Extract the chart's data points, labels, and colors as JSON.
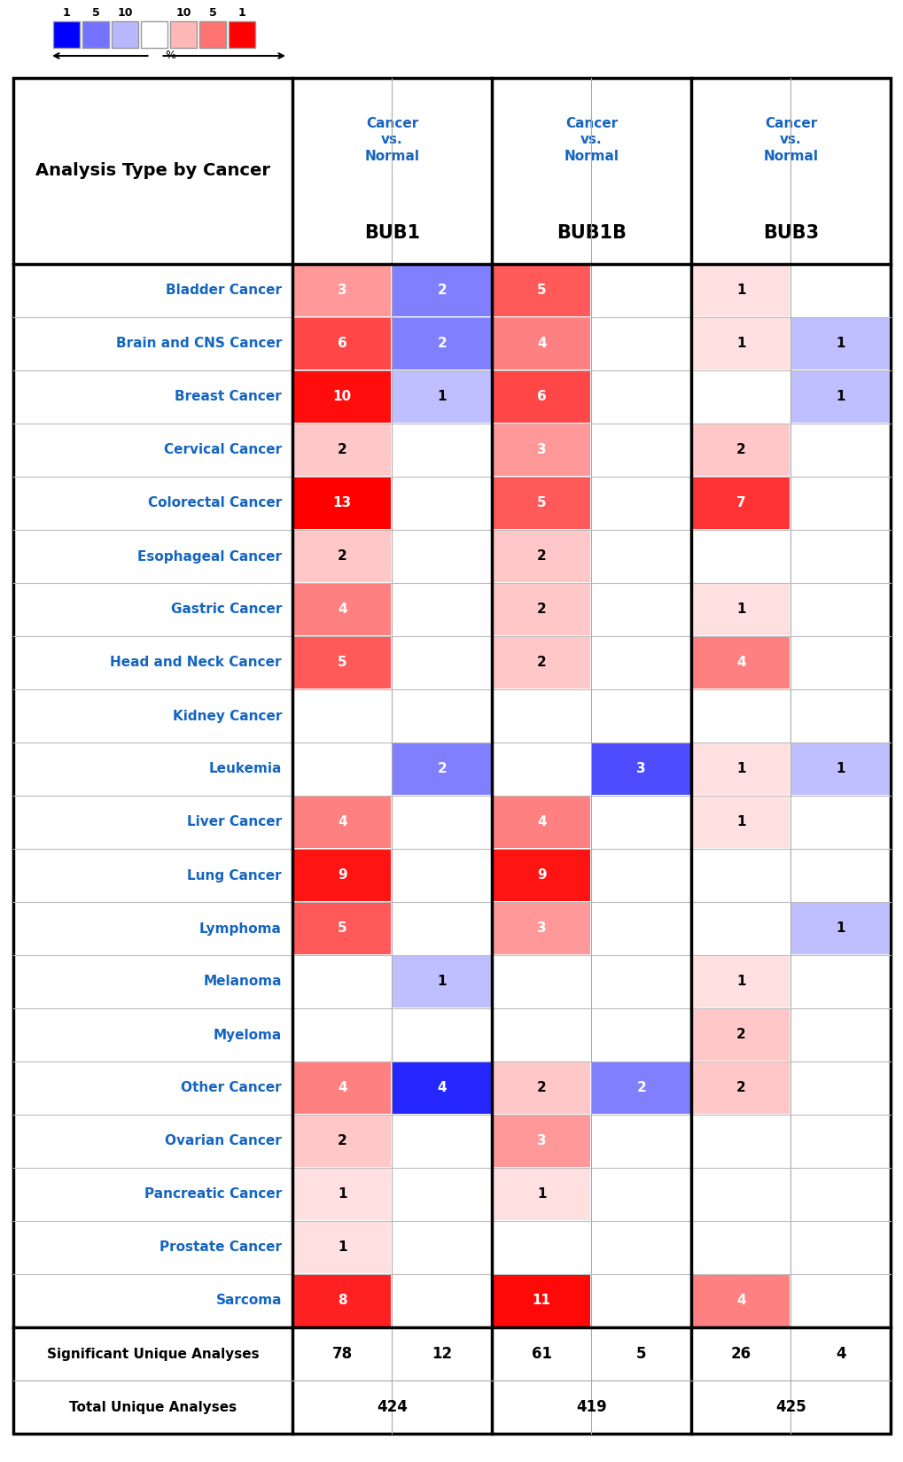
{
  "cancer_types": [
    "Bladder Cancer",
    "Brain and CNS Cancer",
    "Breast Cancer",
    "Cervical Cancer",
    "Colorectal Cancer",
    "Esophageal Cancer",
    "Gastric Cancer",
    "Head and Neck Cancer",
    "Kidney Cancer",
    "Leukemia",
    "Liver Cancer",
    "Lung Cancer",
    "Lymphoma",
    "Melanoma",
    "Myeloma",
    "Other Cancer",
    "Ovarian Cancer",
    "Pancreatic Cancer",
    "Prostate Cancer",
    "Sarcoma"
  ],
  "genes": [
    "BUB1",
    "BUB1B",
    "BUB3"
  ],
  "data": {
    "BUB1": {
      "over": [
        3,
        6,
        10,
        2,
        13,
        2,
        4,
        5,
        0,
        0,
        4,
        9,
        5,
        0,
        0,
        4,
        2,
        1,
        1,
        8
      ],
      "under": [
        2,
        2,
        1,
        0,
        0,
        0,
        0,
        0,
        0,
        2,
        0,
        0,
        0,
        1,
        0,
        4,
        0,
        0,
        0,
        0
      ]
    },
    "BUB1B": {
      "over": [
        5,
        4,
        6,
        3,
        5,
        2,
        2,
        2,
        0,
        0,
        4,
        9,
        3,
        0,
        0,
        2,
        3,
        1,
        0,
        11
      ],
      "under": [
        0,
        0,
        0,
        0,
        0,
        0,
        0,
        0,
        0,
        3,
        0,
        0,
        0,
        0,
        0,
        2,
        0,
        0,
        0,
        0
      ]
    },
    "BUB3": {
      "over": [
        1,
        1,
        0,
        2,
        7,
        0,
        1,
        4,
        0,
        1,
        1,
        0,
        0,
        1,
        2,
        2,
        0,
        0,
        0,
        4
      ],
      "under": [
        0,
        1,
        1,
        0,
        0,
        0,
        0,
        0,
        0,
        1,
        0,
        0,
        1,
        0,
        0,
        0,
        0,
        0,
        0,
        0
      ]
    }
  },
  "sig_unique": {
    "BUB1": [
      78,
      12
    ],
    "BUB1B": [
      61,
      5
    ],
    "BUB3": [
      26,
      4
    ]
  },
  "total_unique": {
    "BUB1": 424,
    "BUB1B": 419,
    "BUB3": 425
  },
  "header_color": "#1565C0",
  "cancer_label_color": "#1565C0",
  "legend_labels_left": [
    "1",
    "5",
    "10"
  ],
  "legend_labels_right": [
    "10",
    "5",
    "1"
  ],
  "legend_blue_intensities": [
    1.0,
    0.55,
    0.28
  ],
  "legend_red_intensities": [
    0.28,
    0.55,
    1.0
  ]
}
